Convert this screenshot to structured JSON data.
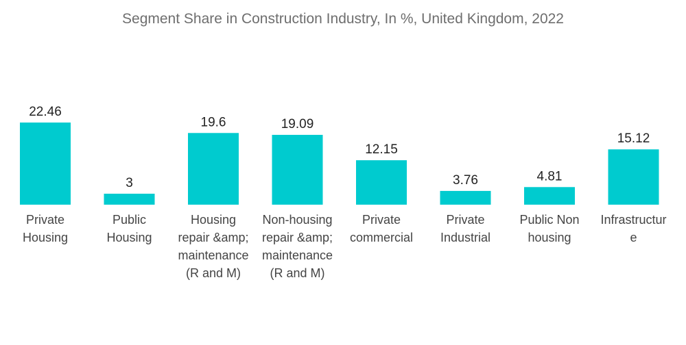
{
  "chart_data": {
    "type": "bar",
    "title": "Segment Share in Construction Industry, In %, United Kingdom, 2022",
    "categories": [
      "Private Housing",
      "Public Housing",
      "Housing repair &amp; maintenance (R and M)",
      "Non-housing repair &amp; maintenance (R and M)",
      "Private commercial",
      "Private Industrial",
      "Public Non housing",
      "Infrastructure"
    ],
    "category_lines": [
      [
        "Private",
        "Housing"
      ],
      [
        "Public",
        "Housing"
      ],
      [
        "Housing",
        "repair &amp;",
        "maintenance",
        "(R and M)"
      ],
      [
        "Non-housing",
        "repair &amp;",
        "maintenance",
        "(R and M)"
      ],
      [
        "Private",
        "commercial"
      ],
      [
        "Private",
        "Industrial"
      ],
      [
        "Public Non",
        "housing"
      ],
      [
        "Infrastructur",
        "e"
      ]
    ],
    "values": [
      22.46,
      3,
      19.6,
      19.09,
      12.15,
      3.76,
      4.81,
      15.12
    ],
    "value_labels": [
      "22.46",
      "3",
      "19.6",
      "19.09",
      "12.15",
      "3.76",
      "4.81",
      "15.12"
    ],
    "xlabel": "",
    "ylabel": "",
    "ylim": [
      0,
      22.46
    ],
    "grid": false,
    "legend": "none",
    "bar_color": "#00cbcf"
  }
}
